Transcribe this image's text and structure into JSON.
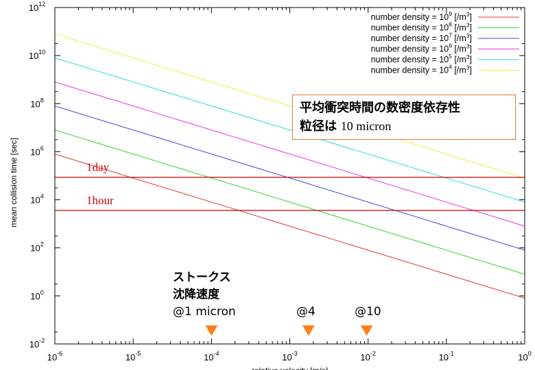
{
  "chart_data": {
    "type": "line",
    "title": "平均衝突時間の数密度依存性",
    "subtitle_prefix": "粒径は",
    "subtitle_value": "10 micron",
    "xlabel": "relative velocity [m/s]",
    "ylabel": "mean collision time [sec]",
    "xscale": "log",
    "yscale": "log",
    "xlim": [
      1e-06,
      1
    ],
    "ylim": [
      0.01,
      1000000000000.0
    ],
    "x_ticks": [
      {
        "base": "10",
        "exp": "-6"
      },
      {
        "base": "10",
        "exp": "-5"
      },
      {
        "base": "10",
        "exp": "-4"
      },
      {
        "base": "10",
        "exp": "-3"
      },
      {
        "base": "10",
        "exp": "-2"
      },
      {
        "base": "10",
        "exp": "-1"
      },
      {
        "base": "10",
        "exp": "0"
      }
    ],
    "y_ticks": [
      {
        "base": "10",
        "exp": "-2"
      },
      {
        "base": "10",
        "exp": "0"
      },
      {
        "base": "10",
        "exp": "2"
      },
      {
        "base": "10",
        "exp": "4"
      },
      {
        "base": "10",
        "exp": "6"
      },
      {
        "base": "10",
        "exp": "8"
      },
      {
        "base": "10",
        "exp": "10"
      },
      {
        "base": "10",
        "exp": "12"
      }
    ],
    "x": [
      1e-06,
      1
    ],
    "series": [
      {
        "name": "number density = 10^9 [/m^3]",
        "label_prefix": "number density = 10",
        "exponent": "9",
        "unit_prefix": "[/m",
        "unit_exp": "3",
        "unit_suffix": "]",
        "color": "#e8342c",
        "values": [
          800000.0,
          0.8
        ]
      },
      {
        "name": "number density = 10^8 [/m^3]",
        "label_prefix": "number density = 10",
        "exponent": "8",
        "unit_prefix": "[/m",
        "unit_exp": "3",
        "unit_suffix": "]",
        "color": "#2ed62e",
        "values": [
          8000000.0,
          8
        ]
      },
      {
        "name": "number density = 10^7 [/m^3]",
        "label_prefix": "number density = 10",
        "exponent": "7",
        "unit_prefix": "[/m",
        "unit_exp": "3",
        "unit_suffix": "]",
        "color": "#4040e8",
        "values": [
          80000000.0,
          80
        ]
      },
      {
        "name": "number density = 10^6 [/m^3]",
        "label_prefix": "number density = 10",
        "exponent": "6",
        "unit_prefix": "[/m",
        "unit_exp": "3",
        "unit_suffix": "]",
        "color": "#ee30ee",
        "values": [
          800000000.0,
          800
        ]
      },
      {
        "name": "number density = 10^5 [/m^3]",
        "label_prefix": "number density = 10",
        "exponent": "5",
        "unit_prefix": "[/m",
        "unit_exp": "3",
        "unit_suffix": "]",
        "color": "#22dede",
        "values": [
          8000000000.0,
          8000
        ]
      },
      {
        "name": "number density = 10^4 [/m^3]",
        "label_prefix": "number density = 10",
        "exponent": "4",
        "unit_prefix": "[/m",
        "unit_exp": "3",
        "unit_suffix": "]",
        "color": "#eeee33",
        "values": [
          80000000000.0,
          80000
        ]
      }
    ],
    "reference_lines": [
      {
        "label": "1day",
        "y": 86400,
        "color": "#cc0000"
      },
      {
        "label": "1hour",
        "y": 3600,
        "color": "#cc0000"
      }
    ],
    "markers": [
      {
        "x": 0.0001,
        "lines": [
          "ストークス",
          "沈降速度",
          "@1 micron"
        ],
        "color": "#ff7f1a"
      },
      {
        "x": 0.0016,
        "lines": [
          "@4"
        ],
        "color": "#ff7f1a"
      },
      {
        "x": 0.01,
        "lines": [
          "@10"
        ],
        "color": "#ff7f1a"
      }
    ],
    "legend_position": "top-right",
    "grid": false
  }
}
